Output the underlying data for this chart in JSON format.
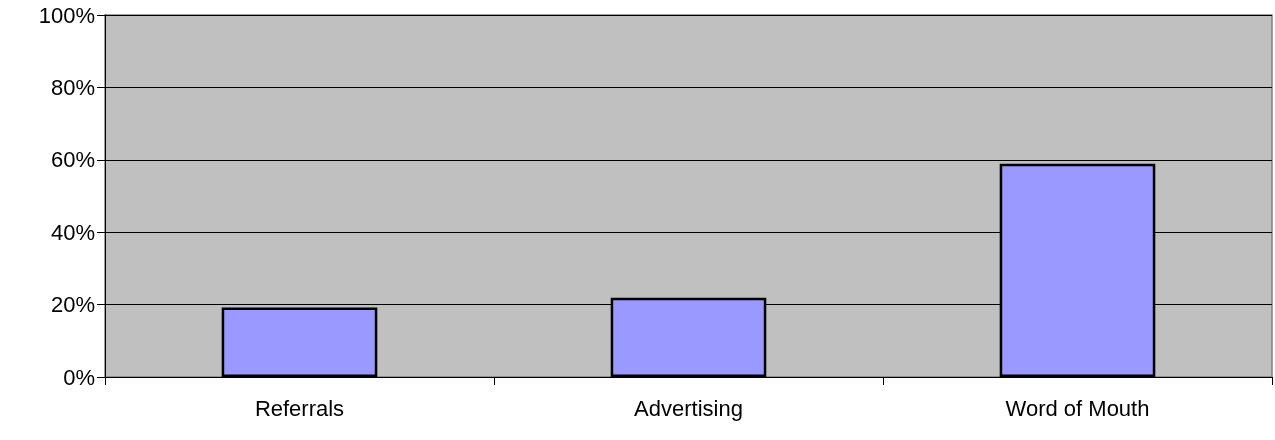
{
  "chart_data": {
    "type": "bar",
    "categories": [
      "Referrals",
      "Advertising",
      "Word of Mouth"
    ],
    "values": [
      19.2,
      21.9,
      58.9
    ],
    "color": "#9999ff",
    "ylim": [
      0,
      100
    ],
    "yticks": [
      {
        "value": 0,
        "label": "0%"
      },
      {
        "value": 20,
        "label": "20%"
      },
      {
        "value": 40,
        "label": "40%"
      },
      {
        "value": 60,
        "label": "60%"
      },
      {
        "value": 80,
        "label": "80%"
      },
      {
        "value": 100,
        "label": "100%"
      }
    ],
    "grid": "y"
  }
}
